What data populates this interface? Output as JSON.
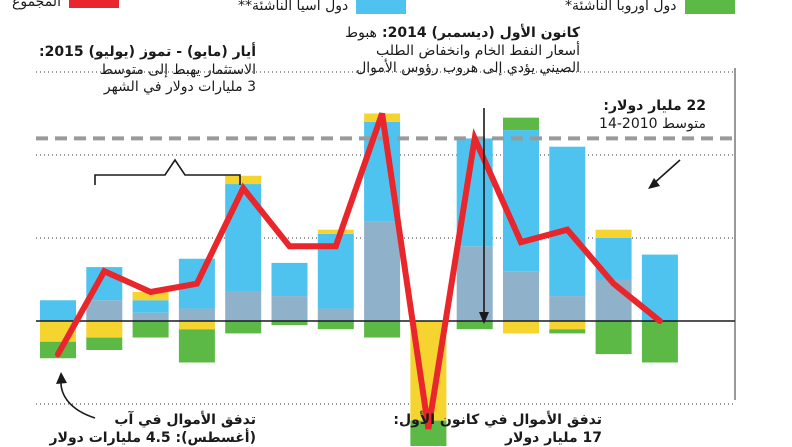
{
  "legend": {
    "total_label": "المجموع",
    "asia_label": "دول آسيا الناشئة**",
    "europe_label": "دول أوروبا الناشئة*"
  },
  "annotations": {
    "may_july": {
      "title": "أيار (مايو) - تموز (يوليو) 2015:",
      "line1": "الاستثمار يهبط إلى متوسط",
      "line2": "3 مليارات دولار في الشهر"
    },
    "december": {
      "title": "كانون الأول (ديسمبر) 2014:",
      "title_suffix": "هبوط",
      "line1": "أسعار النفط الخام وانخفاض الطلب",
      "line2": "الصيني يؤدي إلى هروب رؤوس الأموال"
    },
    "average": {
      "title": "22 مليار دولار:",
      "line1": "متوسط 2010-14"
    },
    "august_flow": {
      "title": "تدفق الأموال في آب",
      "line1": "(أغسطس): 4.5 مليارات دولار"
    },
    "dec_flow": {
      "title": "تدفق الأموال في كانون الأول:",
      "line1": "17 مليار دولار"
    }
  },
  "colors": {
    "total": "#e8262b",
    "asia": "#4fc3ef",
    "europe": "#5cb946",
    "latam": "#f5d430",
    "other": "#8fb1c9",
    "average_line": "#9a9a9a",
    "gridline": "#333333"
  },
  "chart_data": {
    "type": "bar",
    "ylim": [
      -28,
      52
    ],
    "average": 22,
    "gridlines": [
      -10,
      0,
      10,
      20,
      30,
      40
    ],
    "categories": [
      "1",
      "2",
      "3",
      "4",
      "5",
      "6",
      "7",
      "8",
      "9",
      "10",
      "11",
      "12",
      "13",
      "14"
    ],
    "series": [
      {
        "key": "other",
        "values": [
          0,
          2.5,
          1,
          1.5,
          3.5,
          3,
          1.5,
          12,
          0,
          9,
          6,
          3,
          5,
          0
        ]
      },
      {
        "key": "asia",
        "values": [
          2.5,
          4,
          1.5,
          6,
          13,
          4,
          9,
          12,
          0,
          13,
          17,
          18,
          5,
          8
        ]
      },
      {
        "key": "latam",
        "values": [
          -2.5,
          -2,
          1,
          -1,
          1,
          0,
          0.5,
          1,
          -12,
          0,
          -1.5,
          -1,
          1,
          0
        ]
      },
      {
        "key": "europe",
        "values": [
          -2,
          -1.5,
          -2,
          -4,
          -1.5,
          -0.5,
          -1,
          -2,
          -4,
          -1,
          1.5,
          -0.5,
          -4,
          -5
        ]
      },
      {
        "key": "total",
        "values": [
          -4,
          6,
          3.5,
          4.5,
          16,
          9,
          9,
          25,
          -13,
          22,
          9.5,
          11,
          4.5,
          0
        ]
      }
    ]
  }
}
